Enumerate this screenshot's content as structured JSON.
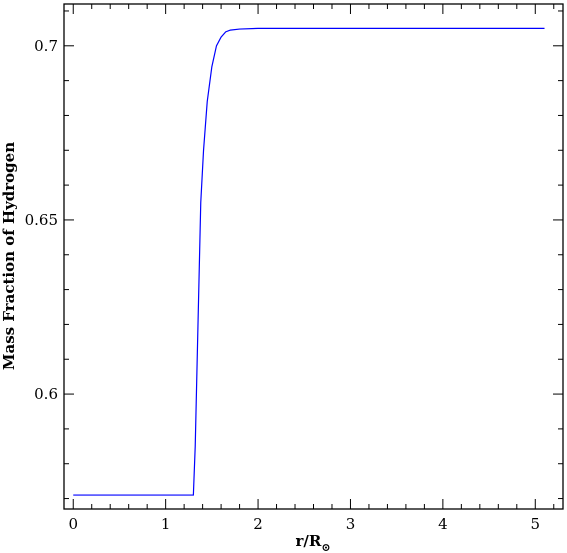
{
  "chart_data": {
    "type": "line",
    "title": "",
    "xlabel": "r/R",
    "xlabel_subscript": "⊙",
    "ylabel": "Mass Fraction of Hydrogen",
    "xlim": [
      -0.1,
      5.3
    ],
    "ylim": [
      0.567,
      0.712
    ],
    "grid": false,
    "legend": "none",
    "x_ticks": [
      0,
      1,
      2,
      3,
      4,
      5
    ],
    "x_tick_labels": [
      "0",
      "1",
      "2",
      "3",
      "4",
      "5"
    ],
    "y_ticks": [
      0.6,
      0.65,
      0.7
    ],
    "y_tick_labels": [
      "0.6",
      "0.65",
      "0.7"
    ],
    "series": [
      {
        "color": "#0000ff",
        "x": [
          0.0,
          0.5,
          1.0,
          1.3,
          1.32,
          1.35,
          1.38,
          1.41,
          1.45,
          1.5,
          1.55,
          1.6,
          1.65,
          1.7,
          1.8,
          2.0,
          2.5,
          3.0,
          3.5,
          4.0,
          4.5,
          5.1
        ],
        "y": [
          0.571,
          0.571,
          0.571,
          0.571,
          0.585,
          0.62,
          0.655,
          0.67,
          0.684,
          0.694,
          0.7,
          0.7025,
          0.704,
          0.7045,
          0.7048,
          0.705,
          0.705,
          0.705,
          0.705,
          0.705,
          0.705,
          0.705
        ]
      }
    ]
  }
}
